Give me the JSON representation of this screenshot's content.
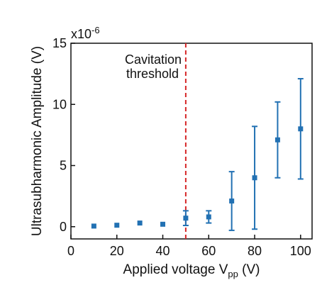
{
  "chart_data": {
    "type": "scatter",
    "xlabel": "Applied voltage V",
    "xlabel_sub": "pp",
    "xlabel_unit": " (V)",
    "ylabel": "Ultrasubharmonic Amplitude (V)",
    "y_multiplier": "x10",
    "y_multiplier_exp": "-6",
    "xlim": [
      0,
      105
    ],
    "ylim": [
      -1,
      15
    ],
    "x_ticks": [
      0,
      20,
      40,
      60,
      80,
      100
    ],
    "y_ticks": [
      0,
      5,
      10,
      15
    ],
    "grid": false,
    "marker_color": "#2271b3",
    "threshold": {
      "x": 50,
      "label_line1": "Cavitation",
      "label_line2": "threshold",
      "color": "#d62728",
      "style": "dashed"
    },
    "series": [
      {
        "points": [
          {
            "x": 10,
            "y": 0.05,
            "err": 0
          },
          {
            "x": 20,
            "y": 0.12,
            "err": 0
          },
          {
            "x": 30,
            "y": 0.3,
            "err": 0
          },
          {
            "x": 40,
            "y": 0.2,
            "err": 0
          },
          {
            "x": 50,
            "y": 0.7,
            "err": 0.6
          },
          {
            "x": 60,
            "y": 0.8,
            "err": 0.5
          },
          {
            "x": 70,
            "y": 2.1,
            "err": 2.4
          },
          {
            "x": 80,
            "y": 4.0,
            "err": 4.2
          },
          {
            "x": 90,
            "y": 7.1,
            "err": 3.1
          },
          {
            "x": 100,
            "y": 8.0,
            "err": 4.1
          }
        ]
      }
    ]
  }
}
